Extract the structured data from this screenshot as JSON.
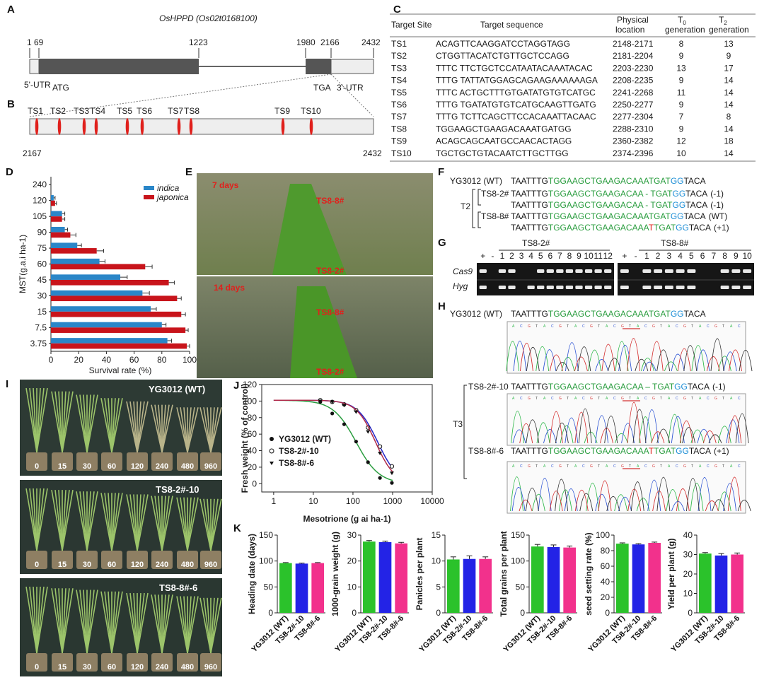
{
  "panel_labels": {
    "A": "A",
    "B": "B",
    "C": "C",
    "D": "D",
    "E": "E",
    "F": "F",
    "G": "G",
    "H": "H",
    "I": "I",
    "J": "J",
    "K": "K"
  },
  "panel_a": {
    "gene_title": "OsHPPD (Os02t0168100)",
    "ticks": [
      "1",
      "69",
      "1223",
      "1980",
      "2166",
      "2432"
    ],
    "utr5": "5'-UTR",
    "atg": "ATG",
    "tga": "TGA",
    "utr3": "3'-UTR"
  },
  "panel_b": {
    "sites": [
      "TS1",
      "TS2",
      "TS3",
      "TS4",
      "TS5",
      "TS6",
      "TS7",
      "TS8",
      "TS9",
      "TS10"
    ],
    "start": "2167",
    "end": "2432"
  },
  "panel_c": {
    "headers": [
      "Target Site",
      "Target sequence",
      "Physical",
      "location",
      "T",
      "0",
      "generation",
      "T",
      "2",
      "generation"
    ],
    "rows": [
      [
        "TS1",
        "ACAGTTCAAGGATCCTAGGTAGG",
        "2148-2171",
        "8",
        "13"
      ],
      [
        "TS2",
        "CTGGTTACATCTGTTGCTCCAGG",
        "2181-2204",
        "9",
        "9"
      ],
      [
        "TS3",
        "TTTC TTCTGCTCCATAATACAAATACAC",
        "2203-2230",
        "13",
        "17"
      ],
      [
        "TS4",
        "TTTG TATTATGGAGCAGAAGAAAAAAGA",
        "2208-2235",
        "9",
        "14"
      ],
      [
        "TS5",
        "TTTC ACTGCTTTGTGATATGTGTCATGC",
        "2241-2268",
        "11",
        "14"
      ],
      [
        "TS6",
        "TTTG TGATATGTGTCATGCAAGTTGATG",
        "2250-2277",
        "9",
        "14"
      ],
      [
        "TS7",
        "TTTG TCTTCAGCTTCCACAAATTACAAC",
        "2277-2304",
        "7",
        "8"
      ],
      [
        "TS8",
        "TGGAAGCTGAAGACAAATGATGG",
        "2288-2310",
        "9",
        "14"
      ],
      [
        "TS9",
        "ACAGCAGCAATGCCAACACTAGG",
        "2360-2382",
        "12",
        "18"
      ],
      [
        "TS10",
        "TGCTGCTGTACAATCTTGCTTGG",
        "2374-2396",
        "10",
        "14"
      ]
    ]
  },
  "panel_e": {
    "label_7d": "7 days",
    "label_14d": "14 days",
    "ts88": "TS8-8#",
    "ts82": "TS8-2#"
  },
  "panel_f": {
    "wt_label": "YG3012 (WT)",
    "t2_label": "T2",
    "line_a": "TS8-2#",
    "line_b": "TS8-8#",
    "seqs": [
      {
        "pre": "TAATTTG",
        "green": "TGGAAGCTGAAGACAAATGAT",
        "blue": "GG",
        "post": "TACA",
        "note": ""
      },
      {
        "pre": "TAATTTG",
        "green": "TGGAAGCTGAAGACAA - TGAT",
        "blue": "GG",
        "post": "TACA",
        "note": "(-1)"
      },
      {
        "pre": "TAATTTG",
        "green": "TGGAAGCTGAAGACAA - TGAT",
        "blue": "GG",
        "post": "TACA",
        "note": "(-1)"
      },
      {
        "pre": "TAATTTG",
        "green": "TGGAAGCTGAAGACAAATGAT",
        "blue": "GG",
        "post": "TACA",
        "note": "(WT)"
      },
      {
        "pre": "TAATTTG",
        "green": "TGGAAGCTGAAGACAAA",
        "red": "T",
        "green2": "TGAT",
        "blue": "GG",
        "post": "TACA",
        "note": "(+1)"
      }
    ]
  },
  "panel_g": {
    "group1": "TS8-2#",
    "group2": "TS8-8#",
    "lanes1": [
      "+",
      "-",
      "1",
      "2",
      "3",
      "4",
      "5",
      "6",
      "7",
      "8",
      "9",
      "10",
      "11",
      "12"
    ],
    "lanes2": [
      "+",
      "-",
      "1",
      "2",
      "3",
      "4",
      "5",
      "6",
      "7",
      "8",
      "9",
      "10"
    ],
    "row1": "Cas9",
    "row2": "Hyg",
    "cas9_1": [
      1,
      0,
      1,
      1,
      0,
      0,
      1,
      1,
      1,
      1,
      1,
      1,
      1,
      1
    ],
    "hyg_1": [
      1,
      0,
      1,
      1,
      0,
      1,
      1,
      1,
      1,
      1,
      1,
      1,
      1,
      1
    ],
    "cas9_2": [
      1,
      0,
      1,
      1,
      1,
      1,
      1,
      0,
      0,
      1,
      1,
      1
    ],
    "hyg_2": [
      1,
      0,
      1,
      1,
      1,
      1,
      1,
      0,
      0,
      1,
      1,
      1
    ]
  },
  "panel_h": {
    "wt_label": "YG3012 (WT)",
    "t3_label": "T3",
    "l1_label": "TS8-2#-10",
    "l2_label": "TS8-8#-6",
    "seq_wt": {
      "pre": "TAATTTG",
      "green": "TGGAAGCTGAAGACAAATGAT",
      "blue": "GG",
      "post": "TACA",
      "note": ""
    },
    "seq_l1": {
      "pre": "TAATTTG",
      "green": "TGGAAGCTGAAGACAA – TGAT",
      "blue": "GG",
      "post": "TACA",
      "note": "(-1)"
    },
    "seq_l2": {
      "pre": "TAATTTG",
      "green": "TGGAAGCTGAAGACAAA",
      "red": "T",
      "green2": "TGAT",
      "blue": "GG",
      "post": "TACA",
      "note": "(+1)"
    }
  },
  "panel_i": {
    "titles": [
      "YG3012 (WT)",
      "TS8-2#-10",
      "TS8-8#-6"
    ],
    "doses": [
      "0",
      "15",
      "30",
      "60",
      "120",
      "240",
      "480",
      "960"
    ]
  },
  "chart_data": [
    {
      "id": "D",
      "type": "bar",
      "orientation": "horizontal",
      "categories": [
        "240",
        "120",
        "105",
        "90",
        "75",
        "60",
        "45",
        "30",
        "15",
        "7.5",
        "3.75"
      ],
      "series": [
        {
          "name": "indica",
          "color": "#2a86c8",
          "values": [
            0,
            2,
            8,
            10,
            19,
            35,
            50,
            66,
            72,
            80,
            84
          ]
        },
        {
          "name": "japonica",
          "color": "#c8141b",
          "values": [
            0,
            3,
            8,
            14,
            33,
            68,
            85,
            91,
            94,
            97,
            98
          ]
        }
      ],
      "error": {
        "indica": [
          0,
          1,
          2,
          2,
          3,
          4,
          5,
          5,
          4,
          3,
          3
        ],
        "japonica": [
          0,
          1,
          2,
          4,
          5,
          5,
          4,
          3,
          3,
          2,
          2
        ]
      },
      "xlabel": "Survival rate (%)",
      "ylabel": "MST(g.a.i ha-1)",
      "xticks": [
        "0",
        "20",
        "40",
        "60",
        "80",
        "100"
      ],
      "xlim": [
        0,
        100
      ]
    },
    {
      "id": "J",
      "type": "line",
      "xscale": "log",
      "xlim": [
        0.5,
        10000
      ],
      "ylim": [
        -10,
        120
      ],
      "xticks": [
        "1",
        "10",
        "100",
        "1000",
        "10000"
      ],
      "yticks": [
        "0",
        "20",
        "40",
        "60",
        "80",
        "100",
        "120"
      ],
      "xlabel": "Mesotrione (g ai ha-1)",
      "ylabel": "Fresh weight (% of control)",
      "series": [
        {
          "name": "YG3012 (WT)",
          "marker": "filled-circle",
          "x": [
            15,
            30,
            60,
            120,
            240,
            480,
            960
          ],
          "y": [
            99,
            85,
            72,
            51,
            26,
            7,
            1
          ],
          "ic50": 120,
          "slope": 1.5
        },
        {
          "name": "TS8-2#-10",
          "marker": "open-circle",
          "x": [
            15,
            30,
            60,
            120,
            240,
            480,
            960
          ],
          "y": [
            101,
            99,
            96,
            89,
            68,
            45,
            21
          ],
          "ic50": 420,
          "slope": 1.7
        },
        {
          "name": "TS8-8#-6",
          "marker": "filled-triangle",
          "x": [
            15,
            30,
            60,
            120,
            240,
            480,
            960
          ],
          "y": [
            100,
            99,
            95,
            87,
            63,
            37,
            13
          ],
          "ic50": 370,
          "slope": 1.8
        }
      ]
    },
    {
      "id": "K",
      "type": "bar",
      "categories": [
        "YG3012 (WT)",
        "TS8-2#-10",
        "TS8-8#-6"
      ],
      "colors": [
        "#2bc22b",
        "#2323e6",
        "#f2318c"
      ],
      "charts": [
        {
          "ylabel": "Heading date (days)",
          "values": [
            96,
            95,
            96
          ],
          "errors": [
            1,
            1,
            1
          ],
          "ylim": [
            0,
            150
          ],
          "yticks": [
            "0",
            "50",
            "100",
            "150"
          ]
        },
        {
          "ylabel": "1000-grain weight (g)",
          "values": [
            27.5,
            27.3,
            26.8
          ],
          "errors": [
            0.4,
            0.4,
            0.4
          ],
          "ylim": [
            0,
            30
          ],
          "yticks": [
            "0",
            "10",
            "20",
            "30"
          ]
        },
        {
          "ylabel": "Panicles per plant",
          "values": [
            10.3,
            10.4,
            10.4
          ],
          "errors": [
            0.5,
            0.6,
            0.4
          ],
          "ylim": [
            0,
            15
          ],
          "yticks": [
            "0",
            "5",
            "10",
            "15"
          ]
        },
        {
          "ylabel": "Total grains per plant",
          "values": [
            128,
            127,
            126
          ],
          "errors": [
            4,
            4,
            3
          ],
          "ylim": [
            0,
            150
          ],
          "yticks": [
            "0",
            "50",
            "100",
            "150"
          ]
        },
        {
          "ylabel": "seed setting rate (%)",
          "values": [
            89,
            88,
            90
          ],
          "errors": [
            1,
            1,
            1
          ],
          "ylim": [
            0,
            100
          ],
          "yticks": [
            "0",
            "20",
            "40",
            "60",
            "80",
            "100"
          ]
        },
        {
          "ylabel": "Yield per plant (g)",
          "values": [
            30.5,
            29.5,
            30.0
          ],
          "errors": [
            0.5,
            1.0,
            0.8
          ],
          "ylim": [
            0,
            40
          ],
          "yticks": [
            "0",
            "10",
            "20",
            "30",
            "40"
          ]
        }
      ]
    }
  ],
  "colors": {
    "green": "#2a9d3f",
    "blue": "#1f8fd6",
    "red": "#e0201c",
    "gelbg": "#161616"
  }
}
